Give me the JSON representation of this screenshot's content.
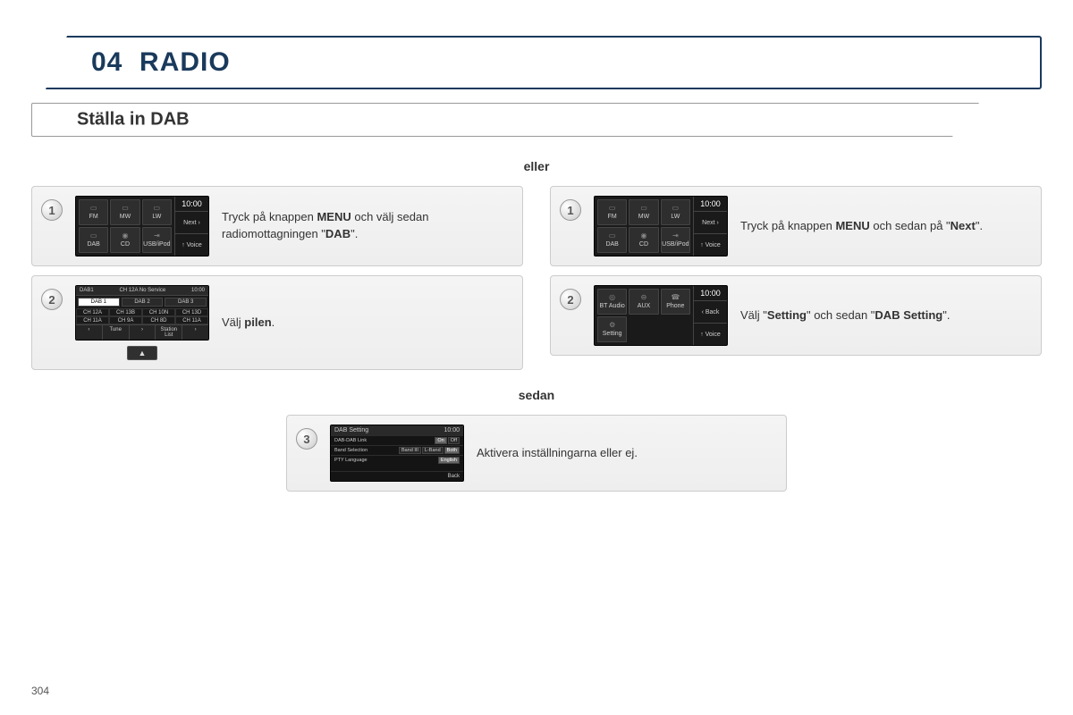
{
  "chapter": {
    "number": "04",
    "title": "RADIO"
  },
  "section": {
    "title": "Ställa in DAB"
  },
  "connectors": {
    "or": "eller",
    "then": "sedan"
  },
  "screens": {
    "menu": {
      "clock": "10:00",
      "tiles": [
        "FM",
        "MW",
        "LW",
        "DAB",
        "CD",
        "USB/iPod"
      ],
      "right_buttons": [
        "Next ›",
        "↑ Voice"
      ]
    },
    "menu2": {
      "clock": "10:00",
      "tiles": [
        "BT Audio",
        "AUX",
        "Phone",
        "Setting",
        "",
        ""
      ],
      "right_buttons": [
        "‹ Back",
        "↑ Voice"
      ]
    },
    "dab_list": {
      "header_left": "DAB1",
      "header_mid": "CH 12A No Service",
      "header_right": "10:00",
      "tabs": [
        "DAB 1",
        "DAB 2",
        "DAB 3"
      ],
      "cells": [
        "CH 12A",
        "CH 13B",
        "CH 10N",
        "CH 13D",
        "CH 11A",
        "CH 9A",
        "CH 8D",
        "CH 11A"
      ],
      "footer": [
        "‹",
        "Tune",
        "›",
        "Station List",
        "›"
      ]
    },
    "dab_setting": {
      "title": "DAB Setting",
      "clock": "10:00",
      "rows": [
        {
          "label": "DAB-DAB Link",
          "options": [
            "On",
            "Off"
          ],
          "selected": 0
        },
        {
          "label": "Band Selection",
          "options": [
            "Band III",
            "L-Band",
            "Both"
          ],
          "selected": 2
        },
        {
          "label": "PTY Language",
          "options": [
            "English"
          ],
          "selected": 0
        }
      ],
      "back": "Back"
    }
  },
  "steps": {
    "left": [
      {
        "num": "1",
        "text_pre": "Tryck på knappen ",
        "text_b1": "MENU",
        "text_mid": " och välj sedan radiomottagningen \"",
        "text_b2": "DAB",
        "text_post": "\"."
      },
      {
        "num": "2",
        "text_pre": "Välj ",
        "text_b1": "pilen",
        "text_post": "."
      }
    ],
    "right": [
      {
        "num": "1",
        "text_pre": "Tryck på knappen ",
        "text_b1": "MENU",
        "text_mid": " och sedan på \"",
        "text_b2": "Next",
        "text_post": "\"."
      },
      {
        "num": "2",
        "text_pre": "Välj \"",
        "text_b1": "Setting",
        "text_mid": "\" och sedan \"",
        "text_b2": "DAB Setting",
        "text_post": "\"."
      }
    ],
    "final": {
      "num": "3",
      "text_pre": "Aktivera inställningarna eller ej."
    }
  },
  "arrow": "▲",
  "page_number": "304",
  "colors": {
    "header_border": "#1a3a5c",
    "card_bg": "#eeeeee",
    "screen_bg": "#1a1a1a",
    "text": "#333333"
  }
}
